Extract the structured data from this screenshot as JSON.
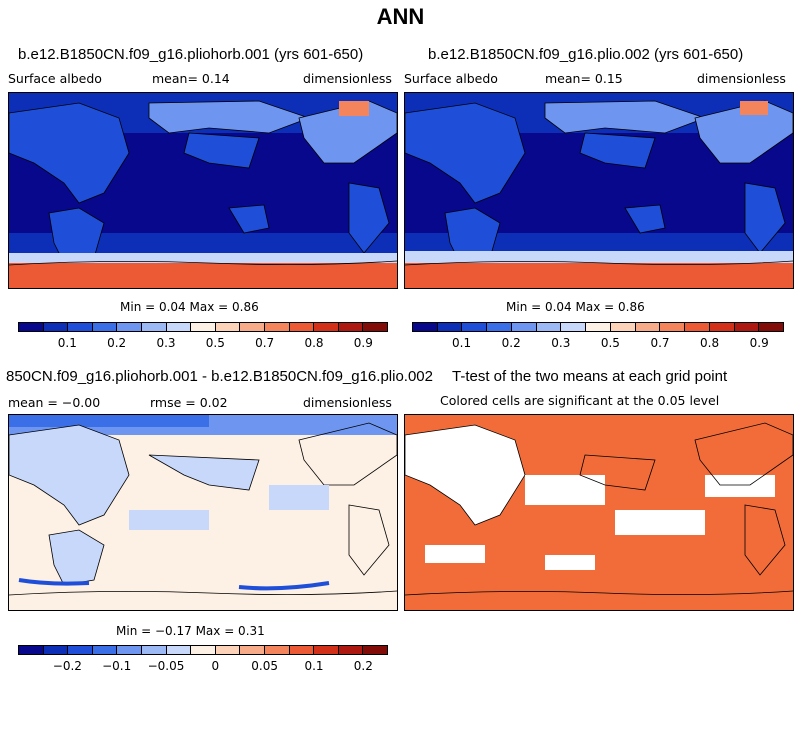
{
  "title": "ANN",
  "panels": [
    {
      "title": "b.e12.B1850CN.f09_g16.pliohorb.001 (yrs 601-650)",
      "left": "Surface albedo",
      "center": "mean=   0.14",
      "right": "dimensionless",
      "minmax": "Min =   0.04 Max =   0.86"
    },
    {
      "title": "b.e12.B1850CN.f09_g16.plio.002 (yrs 601-650)",
      "left": "Surface albedo",
      "center": "mean=   0.15",
      "right": "dimensionless",
      "minmax": "Min =   0.04 Max =   0.86"
    },
    {
      "title": "850CN.f09_g16.pliohorb.001 - b.e12.B1850CN.f09_g16.plio.002",
      "left": "mean =  −0.00",
      "center": "rmse =   0.02",
      "right": "dimensionless",
      "minmax": "Min =  −0.17 Max =   0.31"
    },
    {
      "title": "T-test of the two means at each grid point",
      "subtitle": "Colored cells are significant at the 0.05 level"
    }
  ],
  "colorbar_albedo": {
    "colors": [
      "#08088c",
      "#0d2fb8",
      "#1f4fd8",
      "#3a6fe8",
      "#6e96f0",
      "#9cb8f5",
      "#c8d8fa",
      "#fdf0e4",
      "#fcd2b8",
      "#f8ab88",
      "#f3845c",
      "#eb5a35",
      "#d3301a",
      "#ad1810",
      "#820d08"
    ],
    "ticks": [
      "0.1",
      "0.2",
      "0.3",
      "0.5",
      "0.7",
      "0.8",
      "0.9"
    ]
  },
  "colorbar_diff": {
    "colors": [
      "#08088c",
      "#0d2fb8",
      "#1f4fd8",
      "#3a6fe8",
      "#6e96f0",
      "#9cb8f5",
      "#c8d8fa",
      "#fdf0e4",
      "#fcd2b8",
      "#f8ab88",
      "#f3845c",
      "#eb5a35",
      "#d3301a",
      "#ad1810",
      "#820d08"
    ],
    "ticks": [
      "−0.2",
      "−0.1",
      "−0.05",
      "0",
      "0.05",
      "0.1",
      "0.2"
    ]
  },
  "map_colors": {
    "ocean_dark": "#08088c",
    "ocean_mid": "#0d2fb8",
    "land_blue": "#1f4fd8",
    "land_light": "#6e96f0",
    "snow_light": "#c8d8fa",
    "ice_orange": "#f3845c",
    "ice_red": "#eb5a35",
    "diff_bg": "#fdf0e4",
    "diff_light_blue": "#c8d8fa",
    "diff_blue": "#3a6fe8",
    "ttest_orange": "#f26c3a"
  }
}
